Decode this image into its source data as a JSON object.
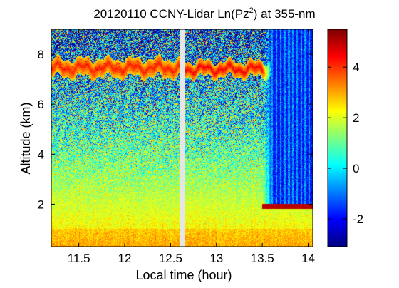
{
  "chart_data": {
    "type": "heatmap",
    "title_main": "20120110 CCNY-Lidar Ln(Pz",
    "title_sup": "2",
    "title_tail": ") at 355-nm",
    "xlabel": "Local time (hour)",
    "ylabel": "Altitude (km)",
    "xlim": [
      11.2,
      14.05
    ],
    "ylim": [
      0.3,
      9.0
    ],
    "x_ticks": [
      11.5,
      12,
      12.5,
      13,
      13.5,
      14
    ],
    "x_tick_labels": [
      "11.5",
      "12",
      "12.5",
      "13",
      "13.5",
      "14"
    ],
    "y_ticks": [
      2,
      4,
      6,
      8
    ],
    "y_tick_labels": [
      "2",
      "4",
      "6",
      "8"
    ],
    "colorbar": {
      "colormap": "jet",
      "clim": [
        -3.1,
        5.5
      ],
      "ticks": [
        -2,
        0,
        2,
        4
      ],
      "tick_labels": [
        "-2",
        "0",
        "2",
        "4"
      ]
    },
    "data_gap": {
      "x_start": 12.6,
      "x_end": 12.66
    },
    "features": [
      {
        "kind": "cloud-layer",
        "x_range": [
          11.2,
          12.6
        ],
        "altitude_km": [
          7.1,
          7.8
        ],
        "value": 4.2
      },
      {
        "kind": "cloud-layer",
        "x_range": [
          12.66,
          13.6
        ],
        "altitude_km": [
          7.1,
          7.7
        ],
        "value": 4.5
      },
      {
        "kind": "low-cloud",
        "x_range": [
          13.5,
          14.05
        ],
        "altitude_km": [
          1.8,
          2.0
        ],
        "value": 5.0
      },
      {
        "kind": "attenuated-region",
        "x_range": [
          13.5,
          14.05
        ],
        "altitude_km": [
          2.0,
          9.0
        ],
        "value": -1.5
      }
    ],
    "grid": false
  }
}
